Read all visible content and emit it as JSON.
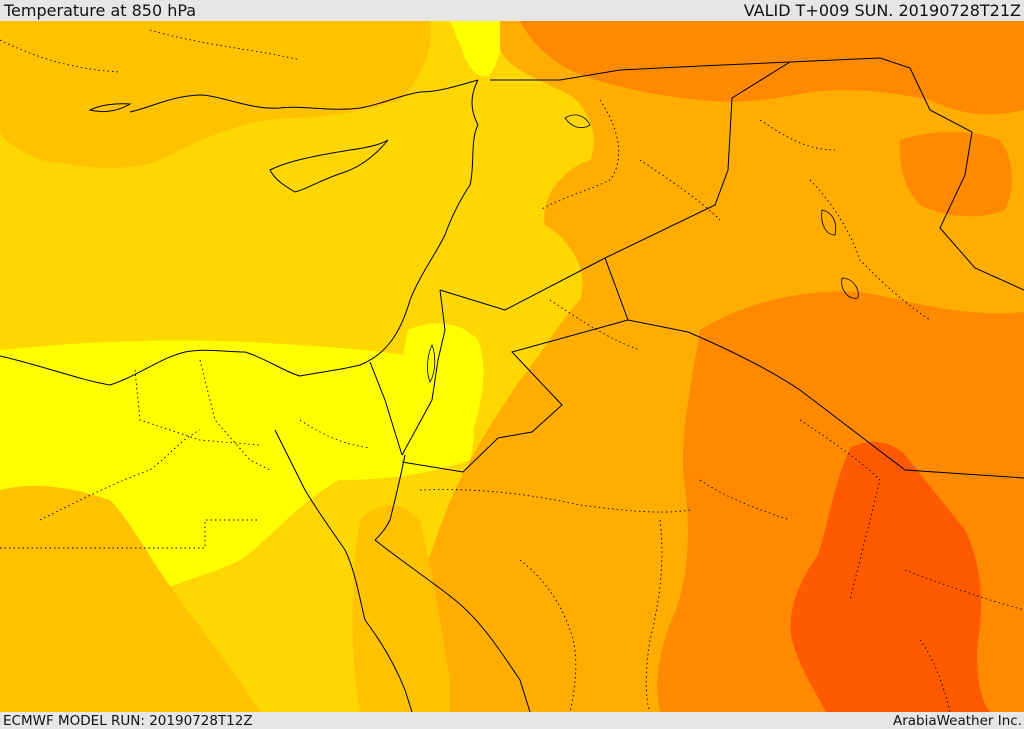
{
  "header": {
    "title": "Temperature at 850 hPa",
    "valid": "VALID T+009 SUN. 20190728T21Z"
  },
  "footer": {
    "model_run": "ECMWF MODEL RUN: 20190728T12Z",
    "credit": "ArabiaWeather Inc."
  },
  "colors": {
    "band_light_yellow": "#ffff00",
    "band_yellow": "#ffd700",
    "band_yellow_orange": "#ffc200",
    "band_amber": "#ffad00",
    "band_orange": "#ff8a00",
    "band_deep_orange": "#ff5a00",
    "coastline": "#000000",
    "borders": "#000000"
  }
}
